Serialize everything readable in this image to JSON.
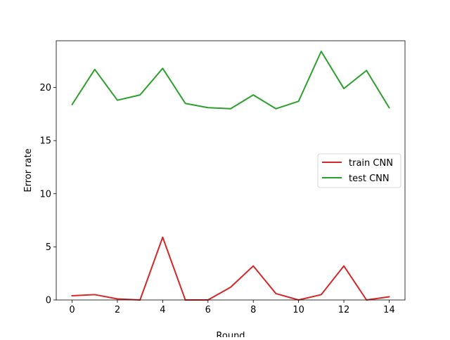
{
  "chart_data": {
    "type": "line",
    "xlabel": "Round",
    "ylabel": "Error rate",
    "xlim": [
      -0.7,
      14.7
    ],
    "ylim": [
      0,
      24.4
    ],
    "x": [
      0,
      1,
      2,
      3,
      4,
      5,
      6,
      7,
      8,
      9,
      10,
      11,
      12,
      13,
      14
    ],
    "x_ticks": [
      "0",
      "2",
      "4",
      "6",
      "8",
      "10",
      "12",
      "14"
    ],
    "x_tick_values": [
      0,
      2,
      4,
      6,
      8,
      10,
      12,
      14
    ],
    "y_ticks": [
      "0",
      "5",
      "10",
      "15",
      "20"
    ],
    "y_tick_values": [
      0,
      5,
      10,
      15,
      20
    ],
    "grid": false,
    "legend_position": "center-right",
    "series": [
      {
        "name": "train CNN",
        "color": "#d62728",
        "values": [
          0.4,
          0.5,
          0.1,
          0.0,
          5.9,
          0.0,
          0.0,
          1.2,
          3.2,
          0.6,
          0.0,
          0.5,
          3.2,
          0.0,
          0.3
        ]
      },
      {
        "name": "test CNN",
        "color": "#2ca02c",
        "values": [
          18.4,
          21.7,
          18.8,
          19.3,
          21.8,
          18.5,
          18.1,
          18.0,
          19.3,
          18.0,
          18.7,
          23.4,
          19.9,
          21.6,
          18.1
        ]
      }
    ]
  }
}
